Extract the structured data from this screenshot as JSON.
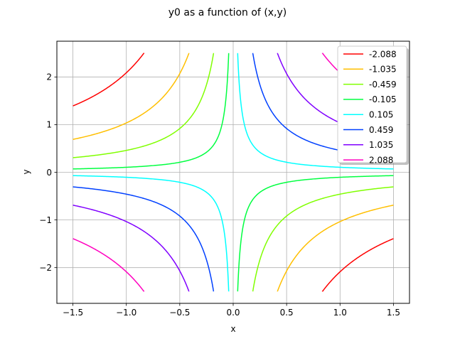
{
  "chart_data": {
    "type": "line",
    "title": "y0 as a function of (x,y)",
    "xlabel": "x",
    "ylabel": "y",
    "xlim": [
      -1.65,
      1.65
    ],
    "ylim": [
      -2.75,
      2.75
    ],
    "xticks": [
      -1.5,
      -1.0,
      -0.5,
      0.0,
      0.5,
      1.0,
      1.5
    ],
    "xtick_labels": [
      "−1.5",
      "−1.0",
      "−0.5",
      "0.0",
      "0.5",
      "1.0",
      "1.5"
    ],
    "yticks": [
      -2,
      -1,
      0,
      1,
      2
    ],
    "ytick_labels": [
      "−2",
      "−1",
      "0",
      "1",
      "2"
    ],
    "grid": true,
    "legend_position": "top-right",
    "contour": {
      "relation": "x*y",
      "x_range": [
        -1.5,
        1.5
      ],
      "y_range": [
        -2.5,
        2.5
      ]
    },
    "series": [
      {
        "name": "-2.088",
        "level": -2.088,
        "color": "#ff0000"
      },
      {
        "name": "-1.035",
        "level": -1.035,
        "color": "#ffbf00"
      },
      {
        "name": "-0.459",
        "level": -0.459,
        "color": "#80ff00"
      },
      {
        "name": "-0.105",
        "level": -0.105,
        "color": "#00ff40"
      },
      {
        "name": "0.105",
        "level": 0.105,
        "color": "#00ffff"
      },
      {
        "name": "0.459",
        "level": 0.459,
        "color": "#0040ff"
      },
      {
        "name": "1.035",
        "level": 1.035,
        "color": "#8000ff"
      },
      {
        "name": "2.088",
        "level": 2.088,
        "color": "#ff00bf"
      }
    ]
  }
}
